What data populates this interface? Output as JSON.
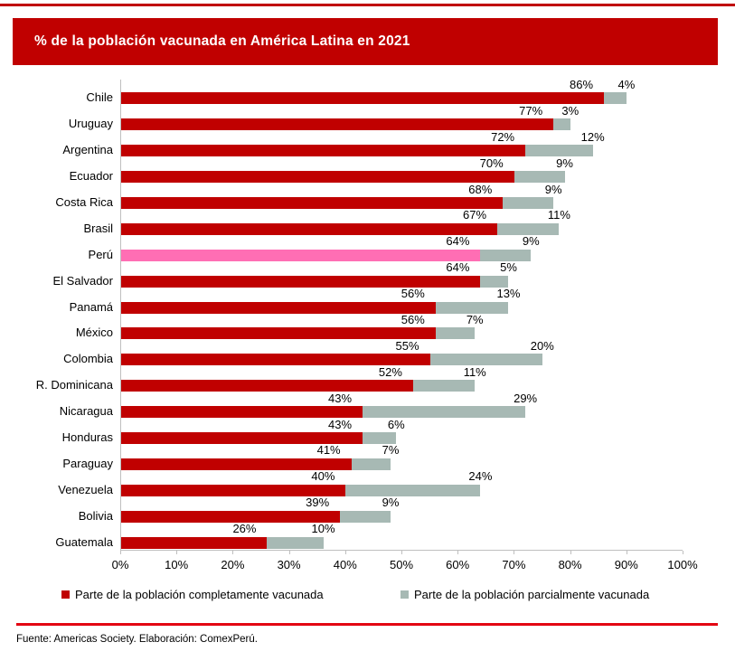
{
  "banner": {
    "title": "% de la población vacunada en América Latina en 2021",
    "bg_color": "#c00000",
    "text_color": "#ffffff"
  },
  "chart_data": {
    "type": "bar",
    "orientation": "horizontal",
    "stacked": true,
    "grid": false,
    "categories": [
      "Chile",
      "Uruguay",
      "Argentina",
      "Ecuador",
      "Costa Rica",
      "Brasil",
      "Perú",
      "El Salvador",
      "Panamá",
      "México",
      "Colombia",
      "R. Dominicana",
      "Nicaragua",
      "Honduras",
      "Paraguay",
      "Venezuela",
      "Bolivia",
      "Guatemala"
    ],
    "series": [
      {
        "name": "Parte de la población completamente vacunada",
        "color": "#c00000",
        "values": [
          86,
          77,
          72,
          70,
          68,
          67,
          64,
          64,
          56,
          56,
          55,
          52,
          43,
          43,
          41,
          40,
          39,
          26
        ]
      },
      {
        "name": "Parte de la población parcialmente vacunada",
        "color": "#a7b9b4",
        "values": [
          4,
          3,
          12,
          9,
          9,
          11,
          9,
          5,
          13,
          7,
          20,
          11,
          29,
          6,
          7,
          24,
          9,
          10
        ]
      }
    ],
    "highlight": {
      "category": "Perú",
      "series": 0,
      "color": "#ff6eb4"
    },
    "value_label_suffix": "%",
    "x_axis": {
      "min": 0,
      "max": 100,
      "tick_labels": [
        "0%",
        "10%",
        "20%",
        "30%",
        "40%",
        "50%",
        "60%",
        "70%",
        "80%",
        "90%",
        "100%"
      ],
      "line_color": "#bfbfbf"
    },
    "legend_position": "bottom"
  },
  "footer": {
    "source": "Fuente: Americas Society. Elaboración: ComexPerú.",
    "rule_color": "#e30613"
  }
}
